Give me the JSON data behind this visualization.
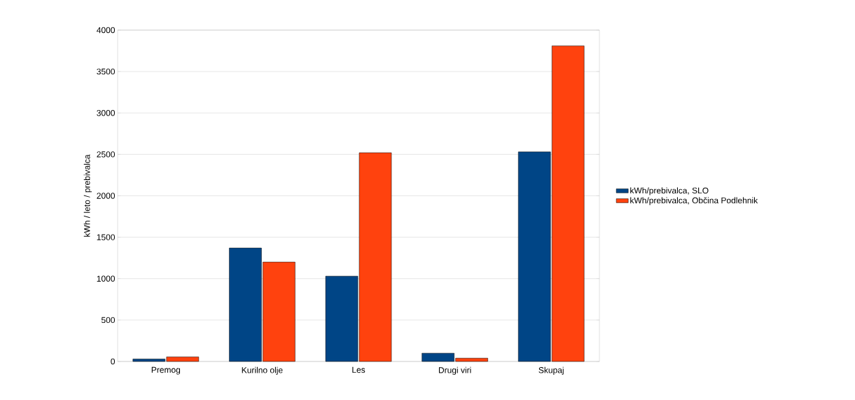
{
  "chart_data": {
    "type": "bar",
    "ylabel": "kWh / leto / prebivalca",
    "categories": [
      "Premog",
      "Kurilno olje",
      "Les",
      "Drugi viri",
      "Skupaj"
    ],
    "series": [
      {
        "name": "kWh/prebivalca, SLO",
        "color": "#004586",
        "values": [
          30,
          1370,
          1030,
          100,
          2530
        ]
      },
      {
        "name": "kWh/prebivalca, Občina Podlehnik",
        "color": "#ff420e",
        "values": [
          55,
          1200,
          2520,
          40,
          3810
        ]
      }
    ],
    "ylim": [
      0,
      4000
    ],
    "yticks": [
      0,
      500,
      1000,
      1500,
      2000,
      2500,
      3000,
      3500,
      4000
    ],
    "grid": "y",
    "legend": "right"
  }
}
